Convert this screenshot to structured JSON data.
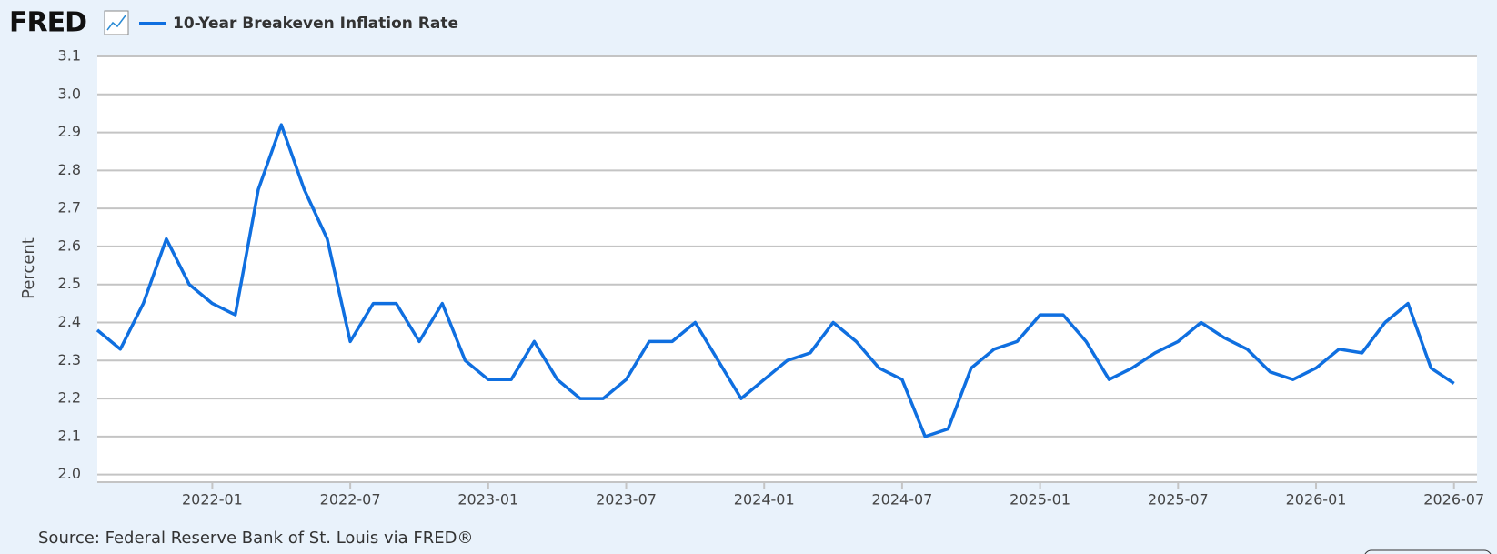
{
  "logo": "FRED",
  "source": "Source: Federal Reserve Bank of St. Louis via FRED®",
  "chart_data": {
    "type": "line",
    "y_label": "Percent",
    "x": [
      "2021-08",
      "2021-09",
      "2021-10",
      "2021-11",
      "2021-12",
      "2022-01",
      "2022-02",
      "2022-03",
      "2022-04",
      "2022-05",
      "2022-06",
      "2022-07",
      "2022-08",
      "2022-09",
      "2022-10",
      "2022-11",
      "2022-12",
      "2023-01",
      "2023-02",
      "2023-03",
      "2023-04",
      "2023-05",
      "2023-06",
      "2023-07",
      "2023-08",
      "2023-09",
      "2023-10",
      "2023-11",
      "2023-12",
      "2024-01",
      "2024-02",
      "2024-03",
      "2024-04",
      "2024-05",
      "2024-06",
      "2024-07",
      "2024-08",
      "2024-09",
      "2024-10",
      "2024-11",
      "2024-12",
      "2025-01",
      "2025-02",
      "2025-03",
      "2025-04",
      "2025-05",
      "2025-06",
      "2025-07",
      "2025-08",
      "2025-09",
      "2025-10",
      "2025-11",
      "2025-12",
      "2026-01",
      "2026-02",
      "2026-03",
      "2026-04",
      "2026-05",
      "2026-06",
      "2026-07"
    ],
    "series": [
      {
        "name": "10-Year Breakeven Inflation Rate",
        "color": "#0f6fe0",
        "values": [
          2.38,
          2.33,
          2.45,
          2.62,
          2.5,
          2.45,
          2.42,
          2.75,
          2.92,
          2.75,
          2.62,
          2.35,
          2.45,
          2.45,
          2.35,
          2.45,
          2.3,
          2.25,
          2.25,
          2.35,
          2.25,
          2.2,
          2.2,
          2.25,
          2.35,
          2.35,
          2.4,
          2.3,
          2.2,
          2.25,
          2.3,
          2.32,
          2.4,
          2.35,
          2.28,
          2.25,
          2.1,
          2.12,
          2.28,
          2.33,
          2.35,
          2.42,
          2.42,
          2.35,
          2.25,
          2.28,
          2.32,
          2.35,
          2.4,
          2.36,
          2.33,
          2.27,
          2.25,
          2.28,
          2.33,
          2.32,
          2.4,
          2.45,
          2.28,
          2.24
        ]
      }
    ],
    "xlim": [
      "2021-08",
      "2026-08"
    ],
    "xticks": [
      "2022-01",
      "2022-07",
      "2023-01",
      "2023-07",
      "2024-01",
      "2024-07",
      "2025-01",
      "2025-07",
      "2026-01",
      "2026-07"
    ],
    "ylim": [
      1.98,
      3.1
    ],
    "yticks": [
      {
        "value": 2.0,
        "label": "2.0"
      },
      2.1,
      2.2,
      2.3,
      2.4,
      2.5,
      2.6,
      2.7,
      2.8,
      2.9,
      {
        "value": 3.0,
        "label": "3.0"
      },
      3.1
    ],
    "grid": true
  }
}
